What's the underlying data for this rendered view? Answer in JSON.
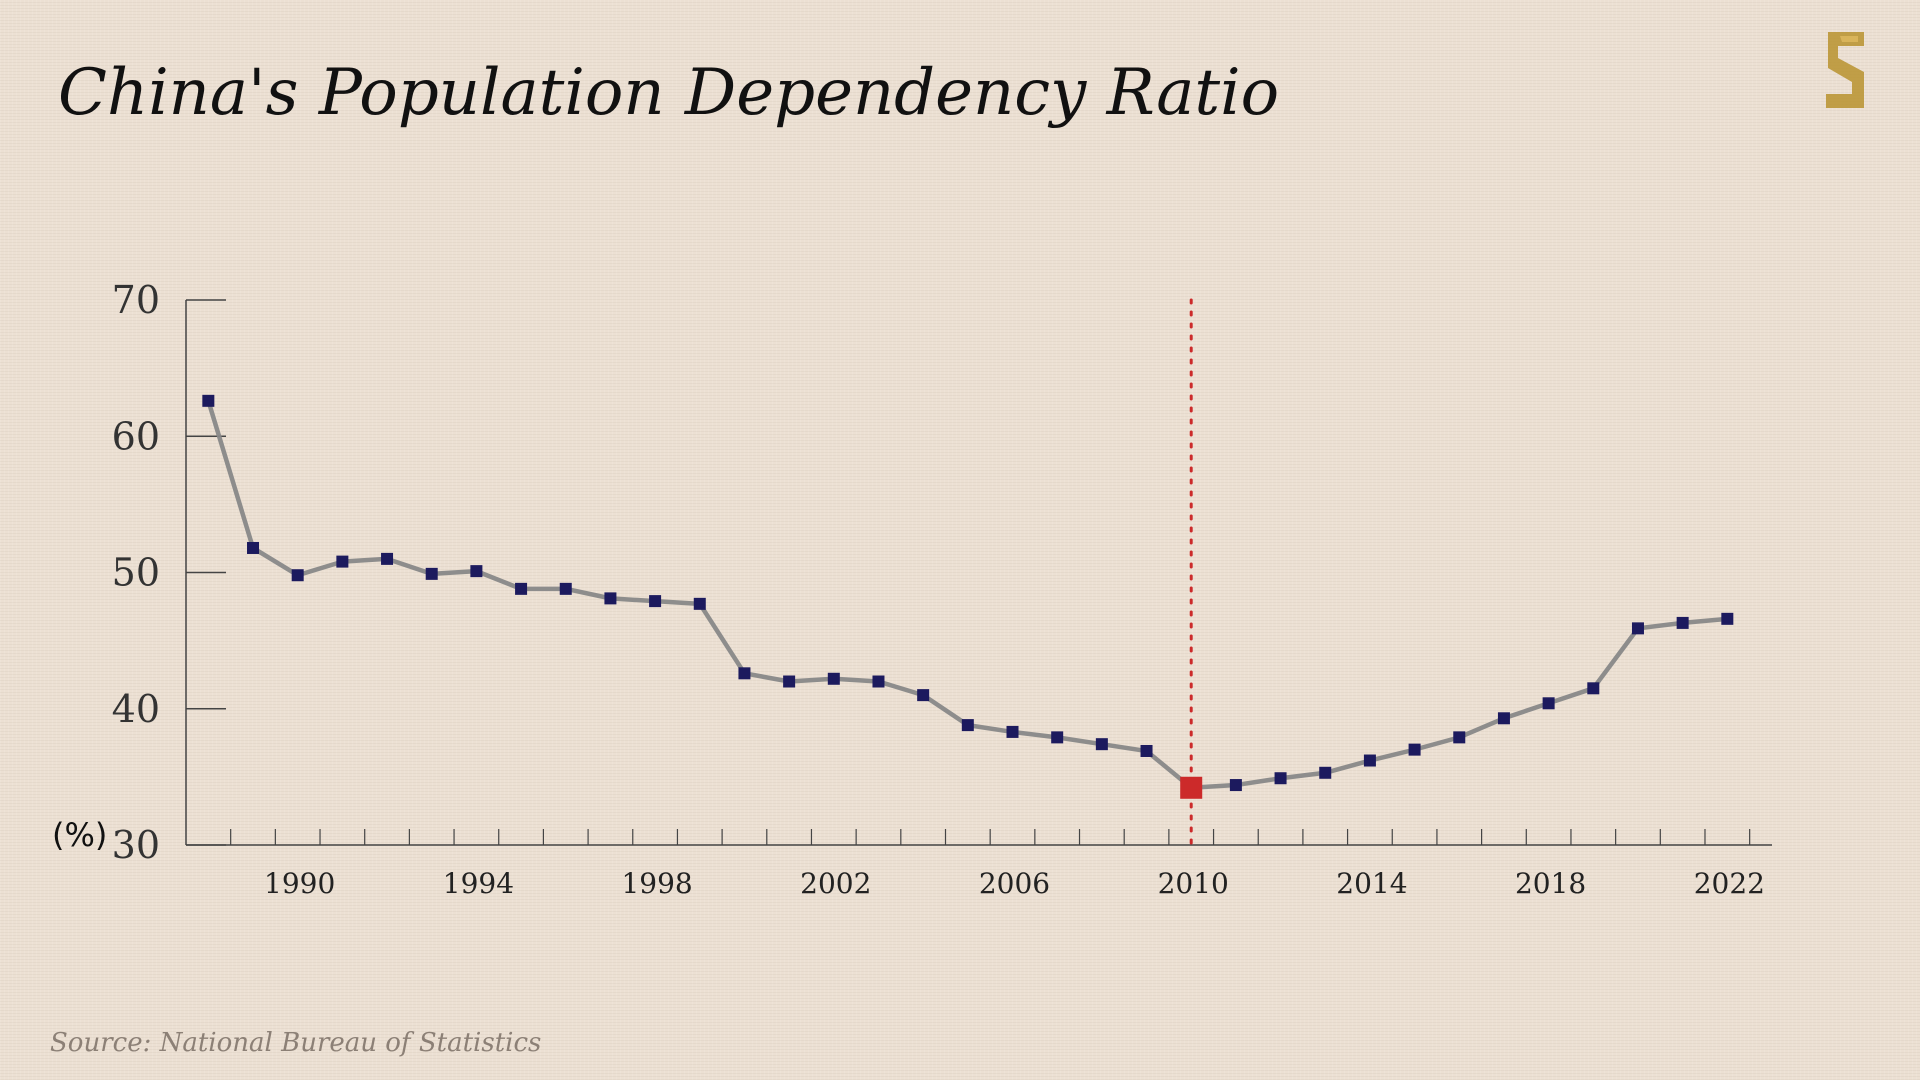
{
  "title": "China's Population Dependency Ratio",
  "source": "Source: National Bureau of Statistics",
  "logo": {
    "icon": "s-china-logo-icon",
    "color": "#b8922e"
  },
  "chart_data": {
    "type": "line",
    "title": "China's Population Dependency Ratio",
    "xlabel": "",
    "ylabel": "(%)",
    "unit": "(%)",
    "xlim": [
      1987.5,
      2023
    ],
    "ylim": [
      30,
      70
    ],
    "yticks": [
      30,
      40,
      50,
      60,
      70
    ],
    "xticks": [
      1990,
      1994,
      1998,
      2002,
      2006,
      2010,
      2014,
      2018,
      2022
    ],
    "highlight": {
      "x": 2010,
      "y": 34.2,
      "color": "#cc2a2a"
    },
    "line_color": "#888888",
    "marker_color": "#1c1a5e",
    "grid": false,
    "x": [
      1988,
      1989,
      1990,
      1991,
      1992,
      1993,
      1994,
      1995,
      1996,
      1997,
      1998,
      1999,
      2000,
      2001,
      2002,
      2003,
      2004,
      2005,
      2006,
      2007,
      2008,
      2009,
      2010,
      2011,
      2012,
      2013,
      2014,
      2015,
      2016,
      2017,
      2018,
      2019,
      2020,
      2021,
      2022
    ],
    "values": [
      62.6,
      51.8,
      49.8,
      50.8,
      51.0,
      49.9,
      50.1,
      48.8,
      48.8,
      48.1,
      47.9,
      47.7,
      42.6,
      42.0,
      42.2,
      42.0,
      41.0,
      38.8,
      38.3,
      37.9,
      37.4,
      36.9,
      34.2,
      34.4,
      34.9,
      35.3,
      36.2,
      37.0,
      37.9,
      39.3,
      40.4,
      41.5,
      45.9,
      46.3,
      46.6
    ]
  }
}
